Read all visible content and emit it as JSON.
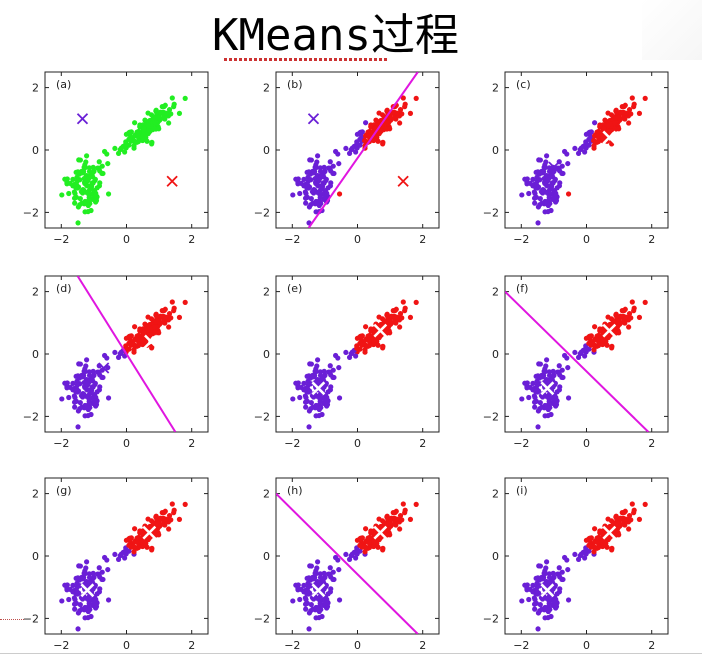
{
  "slide": {
    "title": "KMeans过程"
  },
  "axes": {
    "x_ticks": [
      "−2",
      "0",
      "2"
    ],
    "y_ticks": [
      "2",
      "0",
      "−2"
    ],
    "x_tick_values": [
      -2,
      0,
      2
    ],
    "y_tick_values": [
      2,
      0,
      -2
    ],
    "xlim": [
      -2.5,
      2.5
    ],
    "ylim": [
      -2.5,
      2.5
    ]
  },
  "colors": {
    "unassigned": "#22ee22",
    "cluster_1": "#6a1fd6",
    "cluster_2": "#f01414",
    "boundary": "#e016e0",
    "centroid_light": "#ffffff"
  },
  "chart_data": [
    {
      "type": "scatter",
      "label": "(a)",
      "phase": "init",
      "centroids": [
        {
          "x": -1.35,
          "y": 1.0,
          "cluster": 1
        },
        {
          "x": 1.4,
          "y": -1.0,
          "cluster": 2
        }
      ],
      "boundary": null
    },
    {
      "type": "scatter",
      "label": "(b)",
      "phase": "assign",
      "centroids": [
        {
          "x": -1.35,
          "y": 1.0,
          "cluster": 1
        },
        {
          "x": 1.4,
          "y": -1.0,
          "cluster": 2
        }
      ],
      "boundary": [
        [
          -1.5,
          -2.5
        ],
        [
          1.85,
          2.5
        ]
      ],
      "split": {
        "kind": "line",
        "a": 1.0,
        "b": -0.506,
        "c": 0.0
      }
    },
    {
      "type": "scatter",
      "label": "(c)",
      "phase": "update",
      "centroids": [
        {
          "x": -1.0,
          "y": -0.55,
          "cluster": 1
        },
        {
          "x": 0.7,
          "y": 0.4,
          "cluster": 2
        }
      ],
      "boundary": null,
      "split": {
        "kind": "line",
        "a": 1.0,
        "b": -0.506,
        "c": 0.0
      }
    },
    {
      "type": "scatter",
      "label": "(d)",
      "phase": "assign",
      "centroids": [
        {
          "x": -0.7,
          "y": -0.45,
          "cluster": 1
        },
        {
          "x": 0.75,
          "y": 0.4,
          "cluster": 2
        }
      ],
      "boundary": [
        [
          -1.5,
          2.5
        ],
        [
          1.5,
          -2.5
        ]
      ],
      "split": {
        "kind": "line",
        "a": 1.0,
        "b": 0.6,
        "c": 0.0
      }
    },
    {
      "type": "scatter",
      "label": "(e)",
      "phase": "update",
      "centroids": [
        {
          "x": -1.2,
          "y": -1.1,
          "cluster": 1
        },
        {
          "x": 0.7,
          "y": 0.75,
          "cluster": 2
        }
      ],
      "boundary": null,
      "split": {
        "kind": "line",
        "a": 1.0,
        "b": 0.6,
        "c": 0.0
      }
    },
    {
      "type": "scatter",
      "label": "(f)",
      "phase": "assign",
      "centroids": [
        {
          "x": -1.2,
          "y": -1.1,
          "cluster": 1
        },
        {
          "x": 0.7,
          "y": 0.75,
          "cluster": 2
        }
      ],
      "boundary": [
        [
          -2.5,
          2.0
        ],
        [
          1.9,
          -2.5
        ]
      ],
      "split": {
        "kind": "line",
        "a": 1.0,
        "b": 1.0,
        "c": 0.3
      }
    },
    {
      "type": "scatter",
      "label": "(g)",
      "phase": "update",
      "centroids": [
        {
          "x": -1.2,
          "y": -1.1,
          "cluster": 1
        },
        {
          "x": 0.7,
          "y": 0.75,
          "cluster": 2
        }
      ],
      "boundary": null,
      "split": {
        "kind": "line",
        "a": 1.0,
        "b": 1.0,
        "c": 0.3
      }
    },
    {
      "type": "scatter",
      "label": "(h)",
      "phase": "assign",
      "centroids": [
        {
          "x": -1.2,
          "y": -1.1,
          "cluster": 1
        },
        {
          "x": 0.7,
          "y": 0.75,
          "cluster": 2
        }
      ],
      "boundary": [
        [
          -2.5,
          2.0
        ],
        [
          1.85,
          -2.5
        ]
      ],
      "split": {
        "kind": "line",
        "a": 1.0,
        "b": 1.0,
        "c": 0.3
      }
    },
    {
      "type": "scatter",
      "label": "(i)",
      "phase": "update",
      "centroids": [
        {
          "x": -1.2,
          "y": -1.1,
          "cluster": 1
        },
        {
          "x": 0.7,
          "y": 0.75,
          "cluster": 2
        }
      ],
      "boundary": null,
      "split": {
        "kind": "line",
        "a": 1.0,
        "b": 1.0,
        "c": 0.3
      }
    }
  ]
}
